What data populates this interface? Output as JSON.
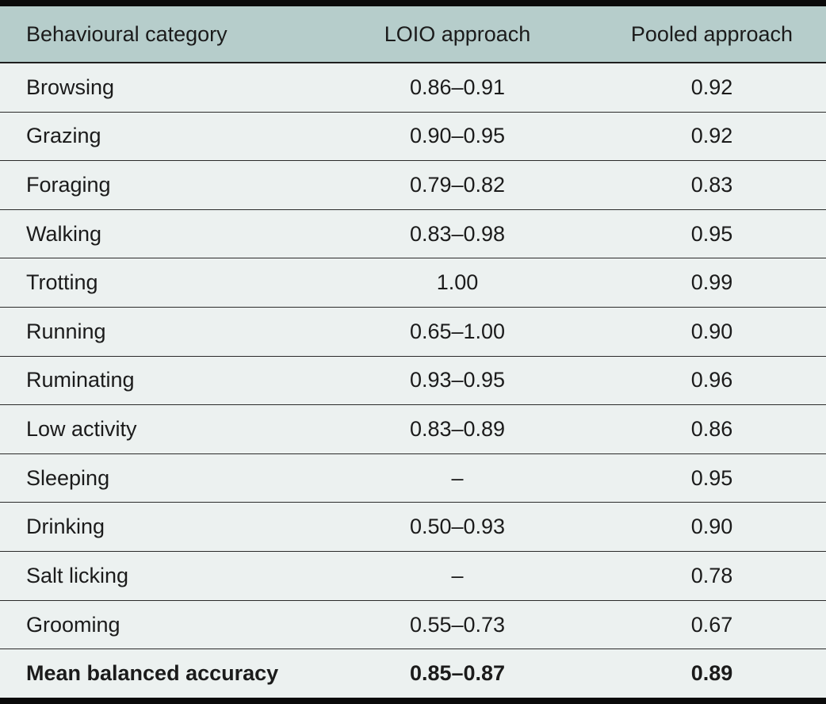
{
  "colors": {
    "header_bg": "#b6cdcb",
    "row_bg": "#ecf1f0",
    "rule": "#0a0a0a",
    "text": "#1b1b1b"
  },
  "chart_data": {
    "type": "table",
    "columns": [
      "Behavioural category",
      "LOIO approach",
      "Pooled approach"
    ],
    "rows": [
      [
        "Browsing",
        "0.86–0.91",
        "0.92"
      ],
      [
        "Grazing",
        "0.90–0.95",
        "0.92"
      ],
      [
        "Foraging",
        "0.79–0.82",
        "0.83"
      ],
      [
        "Walking",
        "0.83–0.98",
        "0.95"
      ],
      [
        "Trotting",
        "1.00",
        "0.99"
      ],
      [
        "Running",
        "0.65–1.00",
        "0.90"
      ],
      [
        "Ruminating",
        "0.93–0.95",
        "0.96"
      ],
      [
        "Low activity",
        "0.83–0.89",
        "0.86"
      ],
      [
        "Sleeping",
        "–",
        "0.95"
      ],
      [
        "Drinking",
        "0.50–0.93",
        "0.90"
      ],
      [
        "Salt licking",
        "–",
        "0.78"
      ],
      [
        "Grooming",
        "0.55–0.73",
        "0.67"
      ],
      [
        "Mean balanced accuracy",
        "0.85–0.87",
        "0.89"
      ]
    ],
    "notes": {
      "summary_row_bold": true,
      "missing_value_symbol": "–"
    }
  }
}
